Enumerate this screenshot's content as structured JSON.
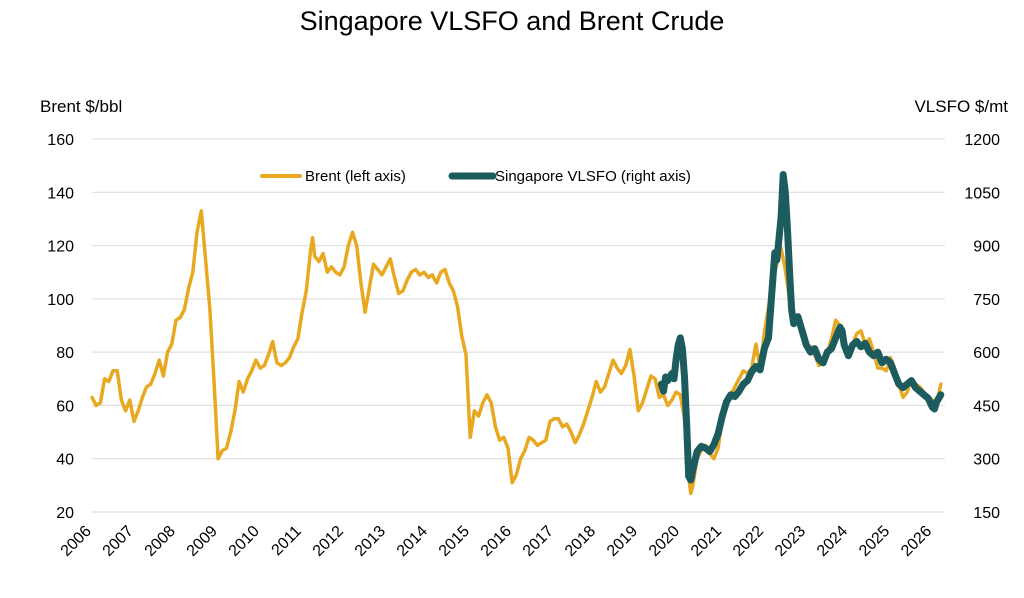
{
  "chart_data": {
    "type": "line",
    "title": "Singapore VLSFO and Brent Crude",
    "y_left_label": "Brent $/bbl",
    "y_right_label": "VLSFO $/mt",
    "x_ticks": [
      "2006",
      "2007",
      "2008",
      "2009",
      "2010",
      "2011",
      "2012",
      "2013",
      "2014",
      "2015",
      "2016",
      "2017",
      "2018",
      "2019",
      "2020",
      "2021",
      "2022",
      "2023",
      "2024",
      "2025",
      "2026"
    ],
    "x_range": [
      2006,
      2026.3
    ],
    "y_left_ticks": [
      20,
      40,
      60,
      80,
      100,
      120,
      140,
      160
    ],
    "y_left_range": [
      20,
      160
    ],
    "y_right_ticks": [
      150,
      300,
      450,
      600,
      750,
      900,
      1050,
      1200
    ],
    "y_right_range": [
      150,
      1200
    ],
    "grid": true,
    "legend_position": "top-center",
    "series": [
      {
        "name": "Brent (left axis)",
        "axis": "left",
        "color": "#e8a820",
        "points": [
          [
            2006.0,
            63
          ],
          [
            2006.1,
            60
          ],
          [
            2006.2,
            61
          ],
          [
            2006.3,
            70
          ],
          [
            2006.4,
            69
          ],
          [
            2006.5,
            73
          ],
          [
            2006.6,
            73
          ],
          [
            2006.7,
            62
          ],
          [
            2006.8,
            58
          ],
          [
            2006.9,
            62
          ],
          [
            2007.0,
            54
          ],
          [
            2007.1,
            58
          ],
          [
            2007.2,
            63
          ],
          [
            2007.3,
            67
          ],
          [
            2007.4,
            68
          ],
          [
            2007.5,
            72
          ],
          [
            2007.6,
            77
          ],
          [
            2007.7,
            71
          ],
          [
            2007.8,
            80
          ],
          [
            2007.9,
            83
          ],
          [
            2008.0,
            92
          ],
          [
            2008.1,
            93
          ],
          [
            2008.2,
            96
          ],
          [
            2008.3,
            104
          ],
          [
            2008.4,
            110
          ],
          [
            2008.5,
            125
          ],
          [
            2008.6,
            133
          ],
          [
            2008.7,
            115
          ],
          [
            2008.8,
            97
          ],
          [
            2008.9,
            70
          ],
          [
            2009.0,
            40
          ],
          [
            2009.1,
            43
          ],
          [
            2009.2,
            44
          ],
          [
            2009.3,
            50
          ],
          [
            2009.4,
            58
          ],
          [
            2009.5,
            69
          ],
          [
            2009.6,
            65
          ],
          [
            2009.7,
            70
          ],
          [
            2009.8,
            73
          ],
          [
            2009.9,
            77
          ],
          [
            2010.0,
            74
          ],
          [
            2010.1,
            75
          ],
          [
            2010.2,
            79
          ],
          [
            2010.3,
            84
          ],
          [
            2010.4,
            76
          ],
          [
            2010.5,
            75
          ],
          [
            2010.6,
            76
          ],
          [
            2010.7,
            78
          ],
          [
            2010.8,
            82
          ],
          [
            2010.9,
            85
          ],
          [
            2011.0,
            95
          ],
          [
            2011.1,
            103
          ],
          [
            2011.2,
            118
          ],
          [
            2011.25,
            123
          ],
          [
            2011.3,
            116
          ],
          [
            2011.4,
            114
          ],
          [
            2011.5,
            117
          ],
          [
            2011.6,
            110
          ],
          [
            2011.7,
            112
          ],
          [
            2011.8,
            110
          ],
          [
            2011.9,
            109
          ],
          [
            2012.0,
            112
          ],
          [
            2012.1,
            120
          ],
          [
            2012.2,
            125
          ],
          [
            2012.3,
            120
          ],
          [
            2012.4,
            106
          ],
          [
            2012.5,
            95
          ],
          [
            2012.6,
            104
          ],
          [
            2012.7,
            113
          ],
          [
            2012.8,
            111
          ],
          [
            2012.9,
            109
          ],
          [
            2013.0,
            112
          ],
          [
            2013.1,
            115
          ],
          [
            2013.2,
            108
          ],
          [
            2013.3,
            102
          ],
          [
            2013.4,
            103
          ],
          [
            2013.5,
            107
          ],
          [
            2013.6,
            110
          ],
          [
            2013.7,
            111
          ],
          [
            2013.8,
            109
          ],
          [
            2013.9,
            110
          ],
          [
            2014.0,
            108
          ],
          [
            2014.1,
            109
          ],
          [
            2014.2,
            106
          ],
          [
            2014.3,
            110
          ],
          [
            2014.4,
            111
          ],
          [
            2014.5,
            106
          ],
          [
            2014.6,
            103
          ],
          [
            2014.7,
            97
          ],
          [
            2014.8,
            86
          ],
          [
            2014.9,
            79
          ],
          [
            2015.0,
            48
          ],
          [
            2015.1,
            58
          ],
          [
            2015.2,
            56
          ],
          [
            2015.3,
            61
          ],
          [
            2015.4,
            64
          ],
          [
            2015.5,
            61
          ],
          [
            2015.6,
            52
          ],
          [
            2015.7,
            47
          ],
          [
            2015.8,
            48
          ],
          [
            2015.9,
            44
          ],
          [
            2016.0,
            31
          ],
          [
            2016.1,
            34
          ],
          [
            2016.2,
            40
          ],
          [
            2016.3,
            43
          ],
          [
            2016.4,
            48
          ],
          [
            2016.5,
            47
          ],
          [
            2016.6,
            45
          ],
          [
            2016.7,
            46
          ],
          [
            2016.8,
            47
          ],
          [
            2016.9,
            54
          ],
          [
            2017.0,
            55
          ],
          [
            2017.1,
            55
          ],
          [
            2017.2,
            52
          ],
          [
            2017.3,
            53
          ],
          [
            2017.4,
            50
          ],
          [
            2017.5,
            46
          ],
          [
            2017.6,
            49
          ],
          [
            2017.7,
            53
          ],
          [
            2017.8,
            58
          ],
          [
            2017.9,
            63
          ],
          [
            2018.0,
            69
          ],
          [
            2018.1,
            65
          ],
          [
            2018.2,
            67
          ],
          [
            2018.3,
            72
          ],
          [
            2018.4,
            77
          ],
          [
            2018.5,
            74
          ],
          [
            2018.6,
            72
          ],
          [
            2018.7,
            75
          ],
          [
            2018.8,
            81
          ],
          [
            2018.9,
            71
          ],
          [
            2019.0,
            58
          ],
          [
            2019.1,
            61
          ],
          [
            2019.2,
            66
          ],
          [
            2019.3,
            71
          ],
          [
            2019.4,
            70
          ],
          [
            2019.5,
            63
          ],
          [
            2019.6,
            64
          ],
          [
            2019.7,
            60
          ],
          [
            2019.8,
            62
          ],
          [
            2019.9,
            65
          ],
          [
            2020.0,
            64
          ],
          [
            2020.1,
            55
          ],
          [
            2020.2,
            33
          ],
          [
            2020.25,
            27
          ],
          [
            2020.3,
            30
          ],
          [
            2020.4,
            40
          ],
          [
            2020.5,
            43
          ],
          [
            2020.6,
            45
          ],
          [
            2020.7,
            42
          ],
          [
            2020.8,
            40
          ],
          [
            2020.9,
            44
          ],
          [
            2021.0,
            55
          ],
          [
            2021.1,
            62
          ],
          [
            2021.2,
            64
          ],
          [
            2021.3,
            67
          ],
          [
            2021.4,
            70
          ],
          [
            2021.5,
            73
          ],
          [
            2021.6,
            72
          ],
          [
            2021.7,
            74
          ],
          [
            2021.8,
            83
          ],
          [
            2021.9,
            74
          ],
          [
            2022.0,
            87
          ],
          [
            2022.1,
            97
          ],
          [
            2022.2,
            107
          ],
          [
            2022.3,
            113
          ],
          [
            2022.4,
            119
          ],
          [
            2022.5,
            111
          ],
          [
            2022.6,
            100
          ],
          [
            2022.7,
            92
          ],
          [
            2022.8,
            93
          ],
          [
            2022.9,
            88
          ],
          [
            2023.0,
            83
          ],
          [
            2023.1,
            82
          ],
          [
            2023.2,
            79
          ],
          [
            2023.3,
            75
          ],
          [
            2023.4,
            76
          ],
          [
            2023.5,
            80
          ],
          [
            2023.6,
            85
          ],
          [
            2023.7,
            92
          ],
          [
            2023.8,
            90
          ],
          [
            2023.9,
            83
          ],
          [
            2024.0,
            79
          ],
          [
            2024.1,
            83
          ],
          [
            2024.2,
            87
          ],
          [
            2024.3,
            88
          ],
          [
            2024.4,
            83
          ],
          [
            2024.5,
            85
          ],
          [
            2024.6,
            80
          ],
          [
            2024.7,
            74
          ],
          [
            2024.8,
            74
          ],
          [
            2024.9,
            73
          ],
          [
            2025.0,
            78
          ],
          [
            2025.1,
            74
          ],
          [
            2025.2,
            68
          ],
          [
            2025.3,
            63
          ],
          [
            2025.4,
            65
          ],
          [
            2025.5,
            70
          ],
          [
            2025.6,
            68
          ],
          [
            2025.7,
            67
          ],
          [
            2025.8,
            65
          ],
          [
            2025.9,
            63
          ],
          [
            2026.0,
            62
          ],
          [
            2026.1,
            61
          ],
          [
            2026.2,
            68
          ]
        ]
      },
      {
        "name": "Singapore VLSFO (right axis)",
        "axis": "right",
        "color": "#1c5c5f",
        "points": [
          [
            2019.55,
            510
          ],
          [
            2019.6,
            490
          ],
          [
            2019.65,
            530
          ],
          [
            2019.7,
            520
          ],
          [
            2019.8,
            540
          ],
          [
            2019.85,
            525
          ],
          [
            2019.9,
            580
          ],
          [
            2019.95,
            620
          ],
          [
            2020.0,
            640
          ],
          [
            2020.05,
            610
          ],
          [
            2020.1,
            530
          ],
          [
            2020.15,
            400
          ],
          [
            2020.2,
            250
          ],
          [
            2020.25,
            240
          ],
          [
            2020.3,
            270
          ],
          [
            2020.4,
            320
          ],
          [
            2020.5,
            335
          ],
          [
            2020.6,
            330
          ],
          [
            2020.7,
            320
          ],
          [
            2020.8,
            340
          ],
          [
            2020.9,
            370
          ],
          [
            2021.0,
            420
          ],
          [
            2021.1,
            460
          ],
          [
            2021.2,
            480
          ],
          [
            2021.3,
            475
          ],
          [
            2021.4,
            490
          ],
          [
            2021.5,
            510
          ],
          [
            2021.6,
            520
          ],
          [
            2021.7,
            545
          ],
          [
            2021.8,
            560
          ],
          [
            2021.9,
            550
          ],
          [
            2022.0,
            610
          ],
          [
            2022.1,
            640
          ],
          [
            2022.2,
            800
          ],
          [
            2022.25,
            880
          ],
          [
            2022.3,
            860
          ],
          [
            2022.35,
            920
          ],
          [
            2022.4,
            980
          ],
          [
            2022.45,
            1100
          ],
          [
            2022.5,
            1050
          ],
          [
            2022.55,
            950
          ],
          [
            2022.6,
            830
          ],
          [
            2022.65,
            720
          ],
          [
            2022.7,
            680
          ],
          [
            2022.8,
            700
          ],
          [
            2022.9,
            660
          ],
          [
            2023.0,
            620
          ],
          [
            2023.1,
            600
          ],
          [
            2023.2,
            610
          ],
          [
            2023.3,
            580
          ],
          [
            2023.4,
            570
          ],
          [
            2023.5,
            600
          ],
          [
            2023.6,
            610
          ],
          [
            2023.7,
            640
          ],
          [
            2023.8,
            670
          ],
          [
            2023.85,
            660
          ],
          [
            2023.9,
            620
          ],
          [
            2024.0,
            590
          ],
          [
            2024.1,
            620
          ],
          [
            2024.2,
            630
          ],
          [
            2024.3,
            615
          ],
          [
            2024.4,
            625
          ],
          [
            2024.5,
            600
          ],
          [
            2024.6,
            590
          ],
          [
            2024.7,
            600
          ],
          [
            2024.8,
            570
          ],
          [
            2024.9,
            580
          ],
          [
            2025.0,
            570
          ],
          [
            2025.1,
            540
          ],
          [
            2025.2,
            510
          ],
          [
            2025.3,
            500
          ],
          [
            2025.4,
            510
          ],
          [
            2025.5,
            520
          ],
          [
            2025.6,
            500
          ],
          [
            2025.7,
            490
          ],
          [
            2025.8,
            480
          ],
          [
            2025.9,
            470
          ],
          [
            2026.0,
            445
          ],
          [
            2026.05,
            440
          ],
          [
            2026.1,
            460
          ],
          [
            2026.2,
            480
          ]
        ]
      }
    ]
  }
}
